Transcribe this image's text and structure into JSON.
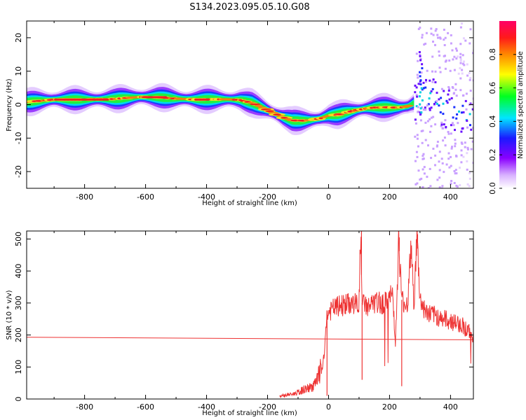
{
  "title": "S134.2023.095.05.10.G08",
  "chart_data": [
    {
      "type": "heatmap",
      "xlabel": "Height of straight line (km)",
      "ylabel": "Frequency (Hz)",
      "xlim": [
        -990,
        475
      ],
      "ylim": [
        -25,
        25
      ],
      "x_ticks": [
        -800,
        -600,
        -400,
        -200,
        0,
        200,
        400
      ],
      "y_ticks": [
        -20,
        -10,
        0,
        10,
        20
      ],
      "ridge_x": [
        -990,
        -900,
        -800,
        -700,
        -620,
        -560,
        -500,
        -430,
        -380,
        -330,
        -290,
        -250,
        -215,
        -180,
        -150,
        -120,
        -90,
        -60,
        -30,
        0,
        30,
        60,
        90,
        120,
        150,
        190,
        230,
        260,
        280,
        300,
        330,
        360,
        400,
        440,
        470
      ],
      "ridge_y": [
        0.8,
        1.5,
        1.5,
        1.7,
        2.3,
        2.2,
        1.8,
        1.5,
        1.6,
        1.6,
        1.4,
        0.5,
        -1.0,
        -2.5,
        -3.8,
        -4.7,
        -4.8,
        -4.6,
        -4.2,
        -3.3,
        -3.0,
        -2.3,
        -1.7,
        -1.2,
        -0.9,
        -0.8,
        -0.9,
        -0.5,
        0.5,
        2.5,
        3.0,
        0.5,
        -1.5,
        -3.0,
        -4.0
      ],
      "colorbar": {
        "label": "Normalized spectral amplitude",
        "ticks": [
          0.0,
          0.2,
          0.4,
          0.6,
          0.8
        ],
        "range": [
          0,
          1
        ],
        "colors": [
          "#ffffff",
          "#d8b0ff",
          "#8a00ff",
          "#1a1aff",
          "#00e5ff",
          "#00ff20",
          "#ffff00",
          "#ff8800",
          "#ff1a1a",
          "#ff0066"
        ]
      }
    },
    {
      "type": "line",
      "xlabel": "Height of straight line (km)",
      "ylabel": "SNR (10 * v/v)",
      "xlim": [
        -990,
        475
      ],
      "ylim": [
        0,
        525
      ],
      "x_ticks": [
        -800,
        -600,
        -400,
        -200,
        0,
        200,
        400
      ],
      "y_ticks": [
        0,
        100,
        200,
        300,
        400,
        500
      ],
      "color": "#ee3333",
      "trend_line": {
        "x": [
          -990,
          475
        ],
        "y": [
          193,
          185
        ]
      },
      "snr_x": [
        -160,
        -140,
        -120,
        -100,
        -80,
        -60,
        -40,
        -30,
        -20,
        -12,
        -8,
        0,
        20,
        50,
        80,
        100,
        105,
        110,
        130,
        160,
        190,
        210,
        220,
        230,
        240,
        250,
        260,
        270,
        280,
        290,
        300,
        320,
        350,
        380,
        410,
        440,
        470
      ],
      "snr_y": [
        10,
        12,
        15,
        20,
        30,
        35,
        50,
        80,
        100,
        150,
        250,
        270,
        285,
        295,
        298,
        295,
        520,
        300,
        290,
        300,
        300,
        330,
        180,
        500,
        310,
        300,
        300,
        480,
        300,
        510,
        310,
        270,
        260,
        250,
        240,
        230,
        200
      ]
    }
  ]
}
